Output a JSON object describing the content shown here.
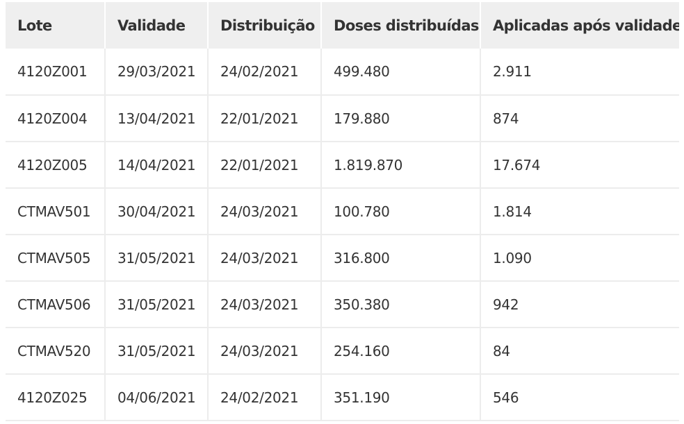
{
  "table": {
    "headers": [
      "Lote",
      "Validade",
      "Distribuição",
      "Doses distribuídas",
      "Aplicadas após validade"
    ],
    "rows": [
      [
        "4120Z001",
        "29/03/2021",
        "24/02/2021",
        "499.480",
        "2.911"
      ],
      [
        "4120Z004",
        "13/04/2021",
        "22/01/2021",
        "179.880",
        "874"
      ],
      [
        "4120Z005",
        "14/04/2021",
        "22/01/2021",
        "1.819.870",
        "17.674"
      ],
      [
        "CTMAV501",
        "30/04/2021",
        "24/03/2021",
        "100.780",
        "1.814"
      ],
      [
        "CTMAV505",
        "31/05/2021",
        "24/03/2021",
        "316.800",
        "1.090"
      ],
      [
        "CTMAV506",
        "31/05/2021",
        "24/03/2021",
        "350.380",
        "942"
      ],
      [
        "CTMAV520",
        "31/05/2021",
        "24/03/2021",
        "254.160",
        "84"
      ],
      [
        "4120Z025",
        "04/06/2021",
        "24/02/2021",
        "351.190",
        "546"
      ]
    ]
  },
  "colors": {
    "header_bg": "#efefef",
    "text": "#333333",
    "grid": "#ececec"
  }
}
